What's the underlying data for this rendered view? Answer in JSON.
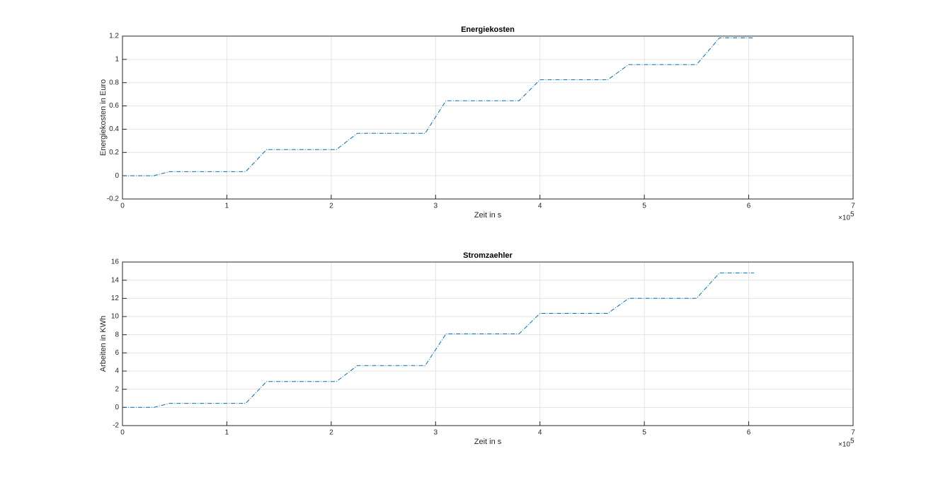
{
  "chart_data": [
    {
      "type": "line",
      "title": "Energiekosten",
      "x_label": "Zeit in s",
      "y_label": "Energiekosten in Euro",
      "x_multiplier": {
        "base": "×10",
        "exponent": "5"
      },
      "xlim": [
        0,
        7
      ],
      "xticks": [
        0,
        1,
        2,
        3,
        4,
        5,
        6,
        7
      ],
      "ylim": [
        -0.2,
        1.2
      ],
      "yticks": [
        -0.2,
        0,
        0.2,
        0.4,
        0.6,
        0.8,
        1,
        1.2
      ],
      "grid": true,
      "x": [
        0,
        0.3,
        0.45,
        1.18,
        1.38,
        2.05,
        2.25,
        2.9,
        3.1,
        3.8,
        4.0,
        4.65,
        4.85,
        5.5,
        5.72,
        6.05
      ],
      "series": [
        {
          "name": "Energiekosten",
          "color": "#0072bd",
          "values": [
            0,
            0,
            0.035,
            0.035,
            0.225,
            0.225,
            0.365,
            0.365,
            0.645,
            0.645,
            0.825,
            0.825,
            0.955,
            0.955,
            1.185,
            1.185
          ]
        }
      ]
    },
    {
      "type": "line",
      "title": "Stromzaehler",
      "x_label": "Zeit in s",
      "y_label": "Arbeiten in KWh",
      "x_multiplier": {
        "base": "×10",
        "exponent": "5"
      },
      "xlim": [
        0,
        7
      ],
      "xticks": [
        0,
        1,
        2,
        3,
        4,
        5,
        6,
        7
      ],
      "ylim": [
        -2,
        16
      ],
      "yticks": [
        -2,
        0,
        2,
        4,
        6,
        8,
        10,
        12,
        14,
        16
      ],
      "grid": true,
      "x": [
        0,
        0.3,
        0.45,
        1.18,
        1.38,
        2.05,
        2.25,
        2.9,
        3.1,
        3.8,
        4.0,
        4.65,
        4.85,
        5.5,
        5.72,
        6.05
      ],
      "series": [
        {
          "name": "Stromzaehler",
          "color": "#0072bd",
          "values": [
            0,
            0,
            0.45,
            0.45,
            2.85,
            2.85,
            4.6,
            4.6,
            8.1,
            8.1,
            10.35,
            10.35,
            12.0,
            12.0,
            14.8,
            14.8
          ]
        }
      ]
    }
  ]
}
